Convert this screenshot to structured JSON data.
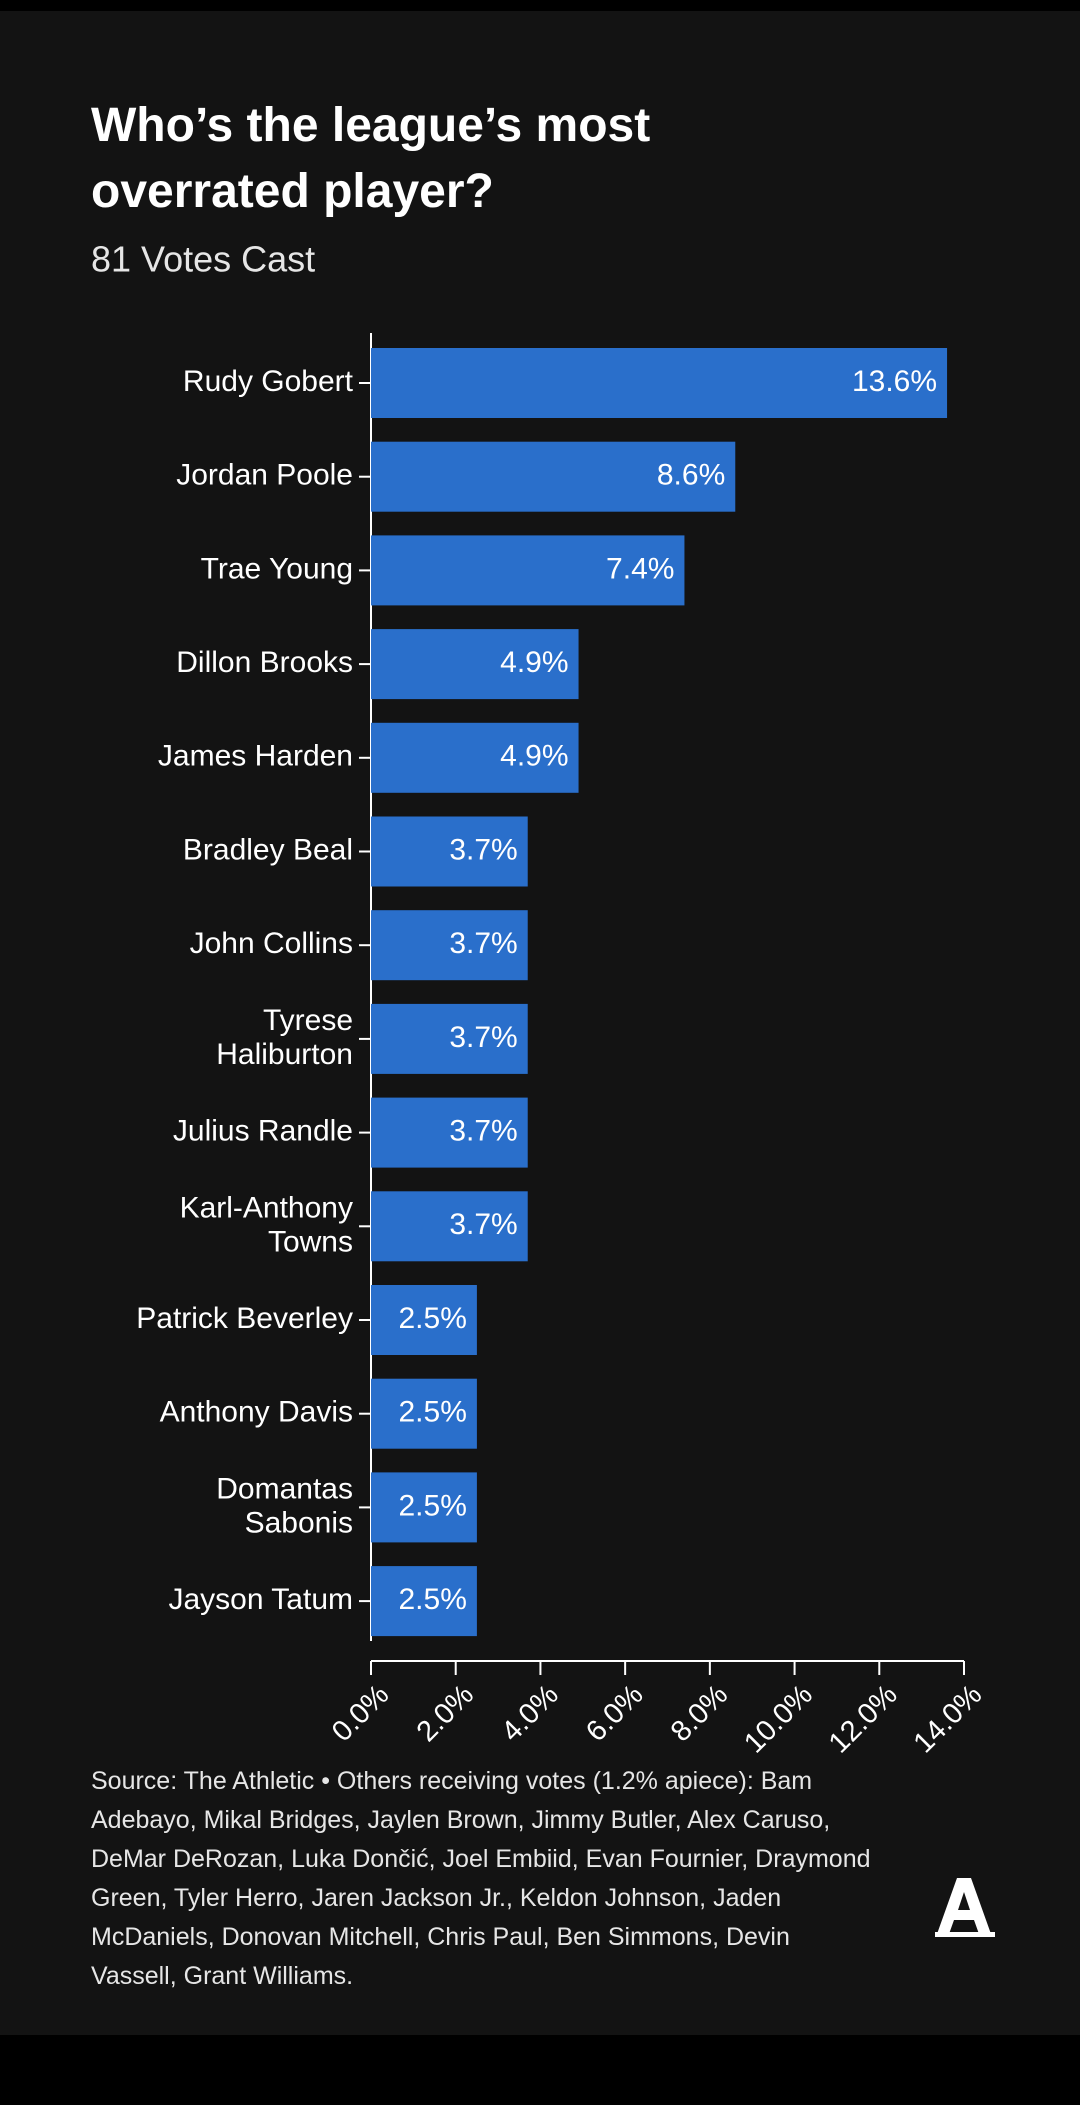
{
  "chart_data": {
    "type": "bar",
    "orientation": "horizontal",
    "title": "Who’s the league’s most overrated player?",
    "subtitle": "81 Votes Cast",
    "categories": [
      "Rudy Gobert",
      "Jordan Poole",
      "Trae Young",
      "Dillon Brooks",
      "James Harden",
      "Bradley Beal",
      "John Collins",
      "Tyrese\nHaliburton",
      "Julius Randle",
      "Karl-Anthony\nTowns",
      "Patrick Beverley",
      "Anthony Davis",
      "Domantas\nSabonis",
      "Jayson Tatum"
    ],
    "values": [
      13.6,
      8.6,
      7.4,
      4.9,
      4.9,
      3.7,
      3.7,
      3.7,
      3.7,
      3.7,
      2.5,
      2.5,
      2.5,
      2.5
    ],
    "value_labels": [
      "13.6%",
      "8.6%",
      "7.4%",
      "4.9%",
      "4.9%",
      "3.7%",
      "3.7%",
      "3.7%",
      "3.7%",
      "3.7%",
      "2.5%",
      "2.5%",
      "2.5%",
      "2.5%"
    ],
    "color": "#2a6fcb",
    "xlim": [
      0,
      14
    ],
    "xticks": [
      {
        "value": 0,
        "label": "0.0%"
      },
      {
        "value": 2,
        "label": "2.0%"
      },
      {
        "value": 4,
        "label": "4.0%"
      },
      {
        "value": 6,
        "label": "6.0%"
      },
      {
        "value": 8,
        "label": "8.0%"
      },
      {
        "value": 10,
        "label": "10.0%"
      },
      {
        "value": 12,
        "label": "12.0%"
      },
      {
        "value": 14,
        "label": "14.0%"
      }
    ],
    "note": "Source: The Athletic • Others receiving votes (1.2% apiece): Bam Adebayo, Mikal Bridges, Jaylen Brown, Jimmy Butler, Alex Caruso, DeMar DeRozan, Luka Dončić, Joel Embiid, Evan Fournier, Draymond Green, Tyler Herro, Jaren Jackson Jr., Keldon Johnson, Jaden McDaniels, Donovan Mitchell, Chris Paul, Ben Simmons, Devin Vassell, Grant Williams."
  }
}
